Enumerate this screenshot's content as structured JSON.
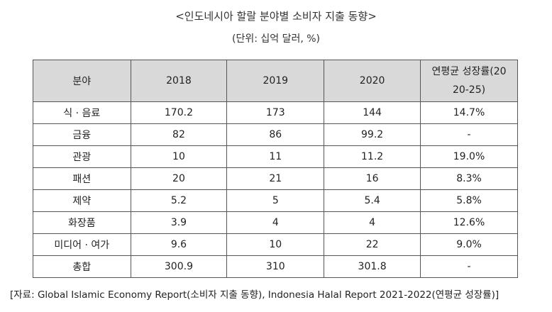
{
  "title": "<인도네시아 할랄 분야별 소비자 지출 동향>",
  "subtitle": "(단위: 십억 달러, %)",
  "table": {
    "headers": [
      "분야",
      "2018",
      "2019",
      "2020",
      "연평균 성장률(20\n20-25)"
    ],
    "rows": [
      [
        "식 · 음료",
        "170.2",
        "173",
        "144",
        "14.7%"
      ],
      [
        "금융",
        "82",
        "86",
        "99.2",
        "-"
      ],
      [
        "관광",
        "10",
        "11",
        "11.2",
        "19.0%"
      ],
      [
        "패션",
        "20",
        "21",
        "16",
        "8.3%"
      ],
      [
        "제약",
        "5.2",
        "5",
        "5.4",
        "5.8%"
      ],
      [
        "화장품",
        "3.9",
        "4",
        "4",
        "12.6%"
      ],
      [
        "미디어 · 여가",
        "9.6",
        "10",
        "22",
        "9.0%"
      ],
      [
        "총합",
        "300.9",
        "310",
        "301.8",
        "-"
      ]
    ]
  },
  "source": "[자료: Global Islamic Economy Report(소비자 지출 동향), Indonesia Halal Report 2021-2022(연평균 성장률)]"
}
